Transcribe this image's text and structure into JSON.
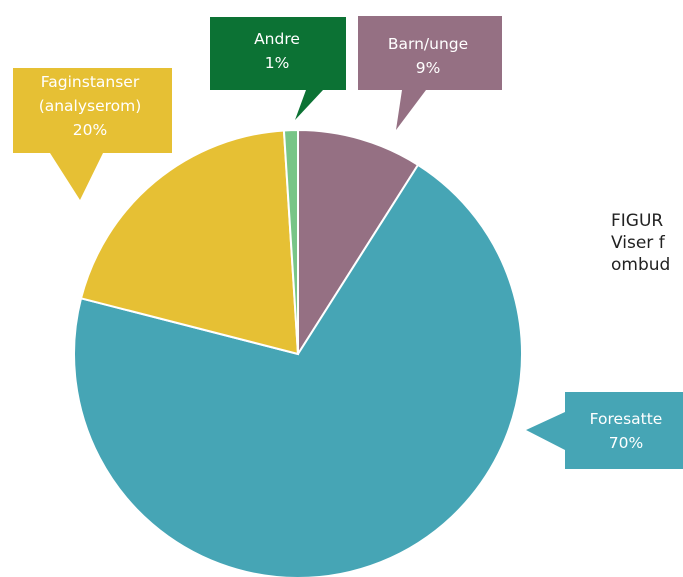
{
  "chart_data": {
    "type": "pie",
    "title": "",
    "slices": [
      {
        "label": "Barn/unge",
        "value": 9,
        "value_label": "9%",
        "color": "#957083"
      },
      {
        "label": "Foresatte",
        "value": 70,
        "value_label": "70%",
        "color": "#46a5b5"
      },
      {
        "label": "Faginstanser",
        "label2": "(analyserom)",
        "value": 20,
        "value_label": "20%",
        "color": "#e6c034"
      },
      {
        "label": "Andre",
        "value": 1,
        "value_label": "1%",
        "color": "#78c587"
      }
    ],
    "callout_colors": {
      "Barn/unge": "#957083",
      "Foresatte": "#46a5b5",
      "Faginstanser": "#e6c034",
      "Andre": "#0c7234"
    }
  },
  "caption": {
    "line1": "FIGUR",
    "line2": "Viser f",
    "line3": "ombud"
  }
}
